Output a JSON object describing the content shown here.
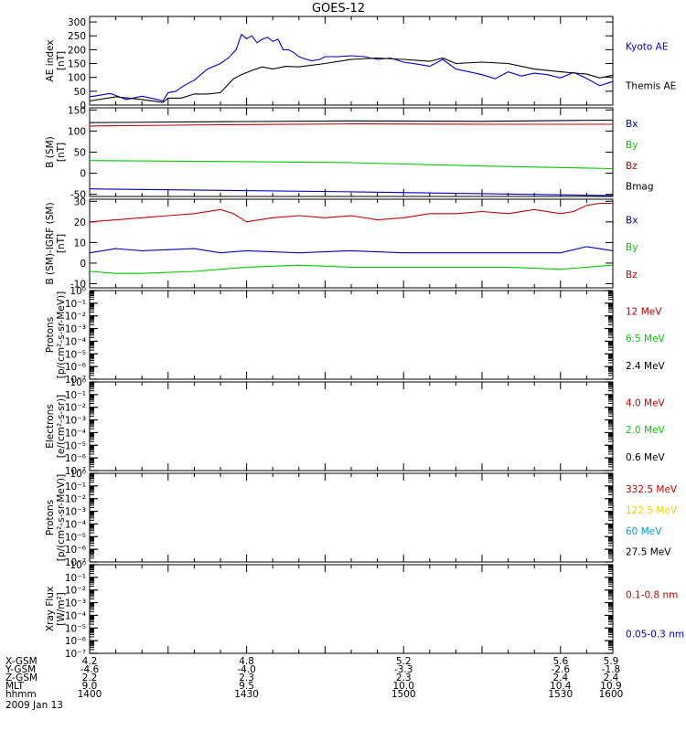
{
  "title": "GOES-12",
  "chart_data": [
    {
      "type": "line",
      "ylabel": [
        "AE index",
        "[nT]"
      ],
      "ylim": [
        0,
        320
      ],
      "yticks": [
        0,
        50,
        100,
        150,
        200,
        250,
        300
      ],
      "ytick_labels": [
        "0",
        "50",
        "100",
        "150",
        "200",
        "250",
        "300"
      ],
      "series": [
        {
          "name": "Kyoto AE",
          "color": "#0000cc",
          "x": [
            0,
            8,
            14,
            20,
            25,
            28,
            30,
            33,
            36,
            40,
            45,
            50,
            53,
            56,
            58,
            60,
            62,
            64,
            66,
            68,
            70,
            72,
            74,
            76,
            78,
            80,
            82,
            85,
            88,
            90,
            95,
            100,
            105,
            110,
            115,
            120,
            125,
            130,
            135,
            140,
            145,
            150,
            155,
            160,
            165,
            170,
            175,
            180,
            185,
            190,
            195,
            200
          ],
          "y": [
            30,
            42,
            20,
            32,
            22,
            15,
            45,
            50,
            70,
            90,
            130,
            150,
            170,
            200,
            255,
            240,
            250,
            225,
            238,
            245,
            230,
            238,
            200,
            200,
            190,
            175,
            168,
            160,
            165,
            175,
            175,
            178,
            175,
            165,
            170,
            155,
            148,
            140,
            165,
            130,
            120,
            110,
            95,
            120,
            105,
            115,
            110,
            98,
            118,
            96,
            70,
            85
          ]
        },
        {
          "name": "Themis AE",
          "color": "#000000",
          "x": [
            0,
            10,
            20,
            28,
            30,
            35,
            40,
            45,
            50,
            55,
            58,
            62,
            66,
            70,
            75,
            80,
            90,
            100,
            110,
            120,
            130,
            135,
            140,
            150,
            160,
            170,
            180,
            190,
            195,
            200
          ],
          "y": [
            15,
            30,
            20,
            10,
            25,
            25,
            40,
            40,
            45,
            95,
            110,
            125,
            138,
            130,
            140,
            138,
            150,
            165,
            170,
            165,
            158,
            170,
            150,
            155,
            150,
            130,
            120,
            112,
            98,
            108
          ]
        }
      ]
    },
    {
      "type": "line",
      "ylabel": [
        "B (SM)",
        "[nT]"
      ],
      "ylim": [
        -55,
        155
      ],
      "yticks": [
        -50,
        0,
        50,
        100,
        150
      ],
      "ytick_labels": [
        "-50",
        "0",
        "50",
        "100",
        "150"
      ],
      "series": [
        {
          "name": "Bx",
          "color": "#0000cc",
          "x": [
            0,
            100,
            200
          ],
          "y": [
            -37,
            -44,
            -53
          ]
        },
        {
          "name": "By",
          "color": "#00cc00",
          "x": [
            0,
            50,
            100,
            150,
            200
          ],
          "y": [
            30,
            28,
            25,
            17,
            11
          ]
        },
        {
          "name": "Bz",
          "color": "#cc0000",
          "x": [
            0,
            50,
            100,
            150,
            200
          ],
          "y": [
            112,
            115,
            117,
            116,
            116
          ]
        },
        {
          "name": "Bmag",
          "color": "#000000",
          "x": [
            0,
            50,
            100,
            150,
            200
          ],
          "y": [
            120,
            122,
            124,
            123,
            126
          ]
        }
      ]
    },
    {
      "type": "line",
      "ylabel": [
        "B (SM)-IGRF (SM)",
        "[nT]"
      ],
      "ylim": [
        -12,
        31
      ],
      "yticks": [
        -10,
        0,
        10,
        20,
        30
      ],
      "ytick_labels": [
        "-10",
        "0",
        "10",
        "20",
        "30"
      ],
      "series": [
        {
          "name": "Bx",
          "color": "#0000cc",
          "x": [
            0,
            10,
            20,
            40,
            50,
            60,
            80,
            100,
            120,
            140,
            160,
            180,
            190,
            200
          ],
          "y": [
            5,
            7,
            6,
            7,
            5,
            6,
            5,
            6,
            5,
            5,
            5,
            5,
            8,
            6
          ]
        },
        {
          "name": "By",
          "color": "#00cc00",
          "x": [
            0,
            10,
            20,
            40,
            50,
            60,
            80,
            100,
            120,
            140,
            160,
            180,
            200
          ],
          "y": [
            -4,
            -5,
            -5,
            -4,
            -3,
            -2,
            -1,
            -2,
            -2,
            -2,
            -2,
            -3,
            -1
          ]
        },
        {
          "name": "Bz",
          "color": "#cc0000",
          "x": [
            0,
            10,
            20,
            30,
            40,
            50,
            55,
            60,
            70,
            80,
            90,
            100,
            110,
            120,
            130,
            140,
            150,
            160,
            170,
            180,
            185,
            190,
            195,
            200
          ],
          "y": [
            20,
            21,
            22,
            23,
            24,
            26,
            24,
            20,
            22,
            23,
            22,
            23,
            21,
            22,
            24,
            24,
            25,
            24,
            26,
            24,
            25,
            28,
            29,
            29
          ]
        }
      ]
    },
    {
      "type": "line",
      "log": true,
      "ylabel": [
        "Protons",
        "[p/(cm²-s-sr-MeV)]"
      ],
      "ylim": [
        1e-07,
        1
      ],
      "ytick_labels": [
        "10⁰",
        "10⁻¹",
        "10⁻²",
        "10⁻³",
        "10⁻⁴",
        "10⁻⁵",
        "10⁻⁶",
        "10⁻⁷"
      ],
      "series": [
        {
          "name": "12 MeV",
          "color": "#cc0000",
          "x": [],
          "y": []
        },
        {
          "name": "6.5 MeV",
          "color": "#00cc00",
          "x": [],
          "y": []
        },
        {
          "name": "2.4 MeV",
          "color": "#000000",
          "x": [],
          "y": []
        }
      ]
    },
    {
      "type": "line",
      "log": true,
      "ylabel": [
        "Electrons",
        "[e/(cm²-s-sr)]"
      ],
      "ylim": [
        1e-07,
        1
      ],
      "ytick_labels": [
        "10⁰",
        "10⁻¹",
        "10⁻²",
        "10⁻³",
        "10⁻⁴",
        "10⁻⁵",
        "10⁻⁶",
        "10⁻⁷"
      ],
      "series": [
        {
          "name": "4.0 MeV",
          "color": "#cc0000",
          "x": [],
          "y": []
        },
        {
          "name": "2.0 MeV",
          "color": "#00cc00",
          "x": [],
          "y": []
        },
        {
          "name": "0.6 MeV",
          "color": "#000000",
          "x": [],
          "y": []
        }
      ]
    },
    {
      "type": "line",
      "log": true,
      "ylabel": [
        "Protons",
        "[p/(cm²-s-sr-MeV)]"
      ],
      "ylim": [
        1e-07,
        1
      ],
      "ytick_labels": [
        "10⁰",
        "10⁻¹",
        "10⁻²",
        "10⁻³",
        "10⁻⁴",
        "10⁻⁵",
        "10⁻⁶",
        "10⁻⁷"
      ],
      "series": [
        {
          "name": "332.5 MeV",
          "color": "#cc0000",
          "x": [],
          "y": []
        },
        {
          "name": "122.5 MeV",
          "color": "#e6d600",
          "x": [],
          "y": []
        },
        {
          "name": "60 MeV",
          "color": "#00a0e0",
          "x": [],
          "y": []
        },
        {
          "name": "27.5 MeV",
          "color": "#000000",
          "x": [],
          "y": []
        }
      ]
    },
    {
      "type": "line",
      "log": true,
      "ylabel": [
        "Xray Flux",
        "[W/m²]"
      ],
      "ylim": [
        1e-07,
        1
      ],
      "ytick_labels": [
        "10⁰",
        "10⁻¹",
        "10⁻²",
        "10⁻³",
        "10⁻⁴",
        "10⁻⁵",
        "10⁻⁶",
        "10⁻⁷"
      ],
      "series": [
        {
          "name": "0.1-0.8 nm",
          "color": "#cc0000",
          "x": [],
          "y": []
        },
        {
          "name": "0.05-0.3 nm",
          "color": "#0000cc",
          "x": [],
          "y": []
        }
      ]
    }
  ],
  "footer": {
    "row_labels": [
      "X-GSM",
      "Y-GSM",
      "Z-GSM",
      "MLT",
      "hhmm"
    ],
    "columns": [
      [
        "4.2",
        "-4.6",
        "2.2",
        "9.0",
        "1400"
      ],
      [
        "4.8",
        "-4.0",
        "2.3",
        "9.5",
        "1430"
      ],
      [
        "5.2",
        "-3.3",
        "2.3",
        "10.0",
        "1500"
      ],
      [
        "5.6",
        "-2.6",
        "2.4",
        "10.4",
        "1530"
      ],
      [
        "5.9",
        "-1.8",
        "2.4",
        "10.9",
        "1600"
      ]
    ],
    "date": "2009 Jan 13"
  }
}
